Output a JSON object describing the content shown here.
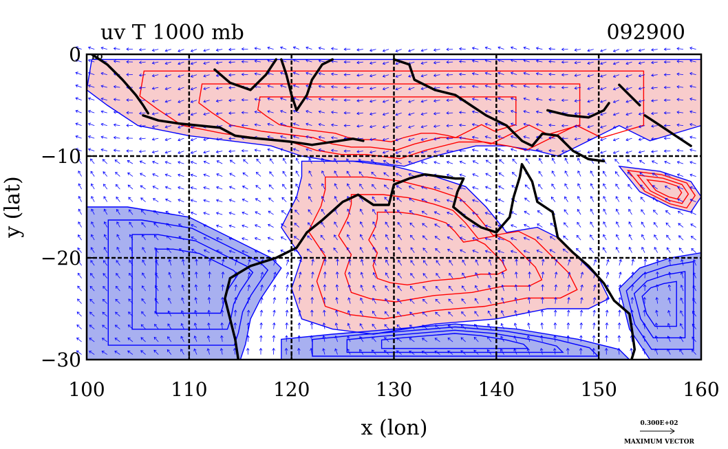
{
  "chart_data": {
    "type": "contour-vector-map",
    "title": "uv T 1000 mb",
    "date_label": "092900",
    "xlabel": "x (lon)",
    "ylabel": "y (lat)",
    "xlim": [
      100,
      160
    ],
    "ylim": [
      -30,
      0
    ],
    "x_ticks": [
      100,
      110,
      120,
      130,
      140,
      150,
      160
    ],
    "y_ticks": [
      -30,
      -20,
      -10,
      0
    ],
    "x_tick_labels": [
      "100",
      "110",
      "120",
      "130",
      "140",
      "150",
      "160"
    ],
    "y_tick_labels": [
      "−30",
      "−20",
      "−10",
      "0"
    ],
    "corner_label": "EQ",
    "grid": true,
    "vector_legend": {
      "value": "0.300E+02",
      "caption": "MAXIMUM VECTOR"
    },
    "colors": {
      "warm": "#f8cccc",
      "cold": "#a8b0f0",
      "warm_contour": "#ff0000",
      "cold_contour": "#0000ff",
      "vector": "#0000ff",
      "coast": "#000000"
    },
    "regions": [
      {
        "kind": "warm",
        "polygon": [
          [
            100.5,
            -0.5
          ],
          [
            106,
            -0.5
          ],
          [
            115,
            -0.5
          ],
          [
            140,
            -0.5
          ],
          [
            160,
            -0.5
          ],
          [
            160,
            -7
          ],
          [
            155,
            -8.5
          ],
          [
            152,
            -7
          ],
          [
            148,
            -9
          ],
          [
            146,
            -10
          ],
          [
            144,
            -9.5
          ],
          [
            141,
            -9
          ],
          [
            138,
            -9
          ],
          [
            134,
            -10
          ],
          [
            131,
            -11
          ],
          [
            127,
            -10.5
          ],
          [
            124,
            -10.5
          ],
          [
            121,
            -10
          ],
          [
            118,
            -9
          ],
          [
            114,
            -8.5
          ],
          [
            110,
            -8
          ],
          [
            105,
            -7
          ],
          [
            102,
            -5
          ],
          [
            100,
            -3.5
          ]
        ]
      },
      {
        "kind": "warm",
        "polygon": [
          [
            121,
            -10.5
          ],
          [
            126,
            -10.5
          ],
          [
            130,
            -11
          ],
          [
            134,
            -12
          ],
          [
            137,
            -13
          ],
          [
            139,
            -15
          ],
          [
            141,
            -17.5
          ],
          [
            144,
            -17
          ],
          [
            146,
            -18
          ],
          [
            148,
            -20
          ],
          [
            150,
            -22
          ],
          [
            151,
            -24
          ],
          [
            149,
            -25
          ],
          [
            145,
            -25
          ],
          [
            140,
            -26
          ],
          [
            134,
            -26.5
          ],
          [
            128,
            -27.5
          ],
          [
            124,
            -27
          ],
          [
            121,
            -26
          ],
          [
            120,
            -23
          ],
          [
            121,
            -20
          ],
          [
            119,
            -17
          ],
          [
            120.5,
            -14
          ],
          [
            121,
            -12
          ]
        ]
      },
      {
        "kind": "warm",
        "polygon": [
          [
            152,
            -11
          ],
          [
            156,
            -11.5
          ],
          [
            159,
            -12.5
          ],
          [
            160,
            -14
          ],
          [
            159,
            -15.5
          ],
          [
            157,
            -15
          ],
          [
            154,
            -13.5
          ]
        ]
      },
      {
        "kind": "cold",
        "polygon": [
          [
            100,
            -15
          ],
          [
            104,
            -15
          ],
          [
            110,
            -16
          ],
          [
            114,
            -18
          ],
          [
            118,
            -20
          ],
          [
            119,
            -21
          ],
          [
            117,
            -24
          ],
          [
            116,
            -26
          ],
          [
            115.5,
            -28.5
          ],
          [
            115,
            -30
          ],
          [
            100,
            -30
          ]
        ]
      },
      {
        "kind": "cold",
        "polygon": [
          [
            119,
            -28
          ],
          [
            124,
            -27.5
          ],
          [
            130,
            -27
          ],
          [
            136,
            -26.5
          ],
          [
            142,
            -27
          ],
          [
            148,
            -28
          ],
          [
            152,
            -29
          ],
          [
            153,
            -30
          ],
          [
            119,
            -30
          ]
        ]
      },
      {
        "kind": "cold",
        "polygon": [
          [
            152,
            -23
          ],
          [
            154,
            -21
          ],
          [
            157,
            -20
          ],
          [
            160,
            -19.5
          ],
          [
            160,
            -30
          ],
          [
            155,
            -30
          ],
          [
            153,
            -27
          ]
        ]
      }
    ],
    "coastlines": [
      [
        [
          100.5,
          0
        ],
        [
          102,
          -1
        ],
        [
          103.5,
          -2.5
        ],
        [
          104.8,
          -4
        ],
        [
          105.5,
          -5
        ],
        [
          106,
          -5.8
        ]
      ],
      [
        [
          105.5,
          -6
        ],
        [
          107,
          -6.5
        ],
        [
          109,
          -6.8
        ],
        [
          111,
          -7
        ],
        [
          113,
          -7.2
        ],
        [
          114.5,
          -8
        ],
        [
          116,
          -8.2
        ],
        [
          118,
          -8.4
        ],
        [
          120,
          -8.6
        ],
        [
          122,
          -8.9
        ],
        [
          124,
          -8.6
        ],
        [
          126,
          -8.3
        ],
        [
          127,
          -8.5
        ]
      ],
      [
        [
          112.5,
          -1.5
        ],
        [
          114,
          -2.8
        ],
        [
          116,
          -3.5
        ],
        [
          117.5,
          -2
        ],
        [
          118.5,
          -0.5
        ]
      ],
      [
        [
          119,
          -0.5
        ],
        [
          119.5,
          -2
        ],
        [
          120,
          -4
        ],
        [
          120.5,
          -5.5
        ],
        [
          121.5,
          -4
        ],
        [
          122,
          -2.5
        ],
        [
          123,
          -1
        ],
        [
          124,
          -0.5
        ]
      ],
      [
        [
          130,
          -0.5
        ],
        [
          131.5,
          -1
        ],
        [
          132,
          -2.5
        ],
        [
          134,
          -3.5
        ],
        [
          136,
          -4
        ],
        [
          137.5,
          -5
        ],
        [
          139,
          -6
        ],
        [
          141,
          -7
        ],
        [
          142.5,
          -8.5
        ],
        [
          143.5,
          -9
        ],
        [
          144.5,
          -7.8
        ],
        [
          146,
          -8
        ],
        [
          147.5,
          -9.5
        ],
        [
          149,
          -10.3
        ],
        [
          150.5,
          -10.5
        ]
      ],
      [
        [
          145,
          -5.5
        ],
        [
          147,
          -6
        ],
        [
          149,
          -6.2
        ],
        [
          150.5,
          -5.5
        ],
        [
          151,
          -4.8
        ]
      ],
      [
        [
          152,
          -3
        ],
        [
          153,
          -4
        ],
        [
          154,
          -5
        ]
      ],
      [
        [
          154.5,
          -6
        ],
        [
          156,
          -7
        ],
        [
          157.5,
          -8
        ],
        [
          159,
          -9
        ]
      ],
      [
        [
          114,
          -22
        ],
        [
          113.5,
          -24
        ],
        [
          114,
          -26
        ],
        [
          114.5,
          -28
        ],
        [
          114.8,
          -30
        ]
      ],
      [
        [
          114,
          -22
        ],
        [
          116,
          -20.8
        ],
        [
          118.5,
          -20
        ],
        [
          120.5,
          -19
        ],
        [
          121.5,
          -17.5
        ],
        [
          123,
          -16.3
        ],
        [
          125,
          -14.5
        ],
        [
          126.5,
          -13.8
        ],
        [
          128,
          -14.8
        ],
        [
          129.5,
          -14.8
        ],
        [
          130,
          -12.8
        ],
        [
          131.5,
          -12.2
        ],
        [
          133,
          -11.8
        ],
        [
          134.5,
          -12
        ],
        [
          136,
          -12.2
        ],
        [
          136.8,
          -12.2
        ],
        [
          136.2,
          -13.5
        ],
        [
          135.8,
          -15
        ],
        [
          137,
          -16
        ],
        [
          138.5,
          -17
        ],
        [
          140,
          -17.5
        ],
        [
          141.3,
          -16
        ],
        [
          141.7,
          -14
        ],
        [
          142.3,
          -12
        ],
        [
          142.5,
          -10.8
        ],
        [
          143.5,
          -12.5
        ],
        [
          144,
          -14.5
        ],
        [
          145.5,
          -15.5
        ],
        [
          146,
          -18
        ],
        [
          147.5,
          -19.5
        ],
        [
          149,
          -20.8
        ],
        [
          150.5,
          -22.5
        ],
        [
          151.5,
          -24.2
        ],
        [
          153,
          -25.5
        ],
        [
          153.3,
          -27.5
        ],
        [
          153.5,
          -29
        ],
        [
          153.2,
          -30
        ]
      ]
    ]
  }
}
